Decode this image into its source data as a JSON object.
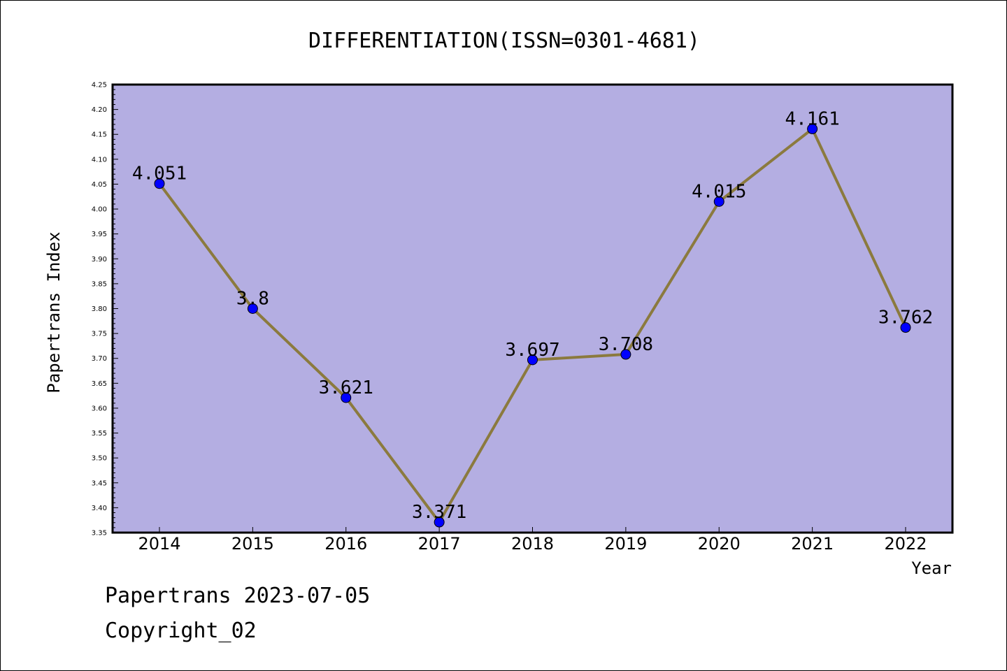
{
  "chart_data": {
    "type": "line",
    "title": "DIFFERENTIATION(ISSN=0301-4681)",
    "xlabel": "Year",
    "ylabel": "Papertrans Index",
    "categories": [
      "2014",
      "2015",
      "2016",
      "2017",
      "2018",
      "2019",
      "2020",
      "2021",
      "2022"
    ],
    "series": [
      {
        "values": [
          4.051,
          3.8,
          3.621,
          3.371,
          3.697,
          3.708,
          4.015,
          4.161,
          3.762
        ],
        "data_labels": [
          "4.051",
          "3.8",
          "3.621",
          "3.371",
          "3.697",
          "3.708",
          "4.015",
          "4.161",
          "3.762"
        ]
      }
    ],
    "ylim": [
      3.35,
      4.25
    ],
    "yticks": [
      "3.35",
      "3.40",
      "3.45",
      "3.50",
      "3.55",
      "3.60",
      "3.65",
      "3.70",
      "3.75",
      "3.80",
      "3.85",
      "3.90",
      "3.95",
      "4.00",
      "4.05",
      "4.10",
      "4.15",
      "4.20",
      "4.25"
    ],
    "grid": false,
    "colors": {
      "plot_background": "#b4aee2",
      "line": "#8b7a3e",
      "marker": "#0000ff",
      "axes": "#000000"
    }
  },
  "footer": {
    "line1": "Papertrans 2023-07-05",
    "line2": "Copyright_02"
  }
}
